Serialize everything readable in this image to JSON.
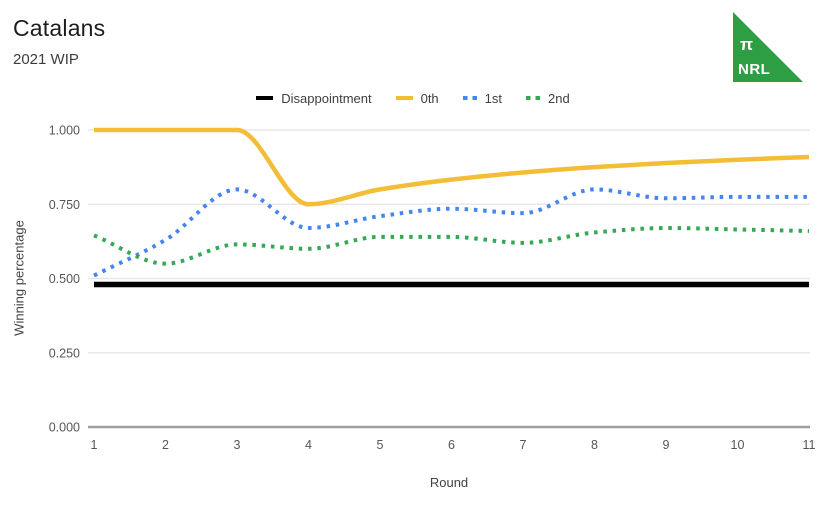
{
  "logo": {
    "pi": "π",
    "text": "NRL",
    "color": "#2E9E44"
  },
  "chart_data": {
    "type": "line",
    "title": "Catalans",
    "subtitle": "2021 WIP",
    "xlabel": "Round",
    "ylabel": "Winning percentage",
    "x": [
      1,
      2,
      3,
      4,
      5,
      6,
      7,
      8,
      9,
      10,
      11
    ],
    "xtick_labels": [
      "1",
      "2",
      "3",
      "4",
      "5",
      "6",
      "7",
      "8",
      "9",
      "10",
      "11"
    ],
    "ylim": [
      0,
      1
    ],
    "yticks": [
      0,
      0.25,
      0.5,
      0.75,
      1
    ],
    "ytick_labels": [
      "0.000",
      "0.250",
      "0.500",
      "0.750",
      "1.000"
    ],
    "grid": true,
    "legend_position": "top",
    "series": [
      {
        "name": "Disappointment",
        "color": "#000000",
        "style": "solid",
        "width": 5.5,
        "values": [
          0.48,
          0.48,
          0.48,
          0.48,
          0.48,
          0.48,
          0.48,
          0.48,
          0.48,
          0.48,
          0.48
        ]
      },
      {
        "name": "0th",
        "color": "#F3BD35",
        "style": "solid",
        "width": 4.5,
        "values": [
          1.0,
          1.0,
          1.0,
          0.75,
          0.8,
          0.833,
          0.857,
          0.875,
          0.889,
          0.9,
          0.909
        ]
      },
      {
        "name": "1st",
        "color": "#4285F4",
        "style": "dotted",
        "width": 4,
        "values": [
          0.51,
          0.63,
          0.8,
          0.67,
          0.71,
          0.735,
          0.72,
          0.8,
          0.77,
          0.775,
          0.775
        ]
      },
      {
        "name": "2nd",
        "color": "#34A853",
        "style": "dotted",
        "width": 4,
        "values": [
          0.645,
          0.55,
          0.615,
          0.6,
          0.64,
          0.64,
          0.62,
          0.655,
          0.67,
          0.665,
          0.66
        ]
      }
    ]
  }
}
